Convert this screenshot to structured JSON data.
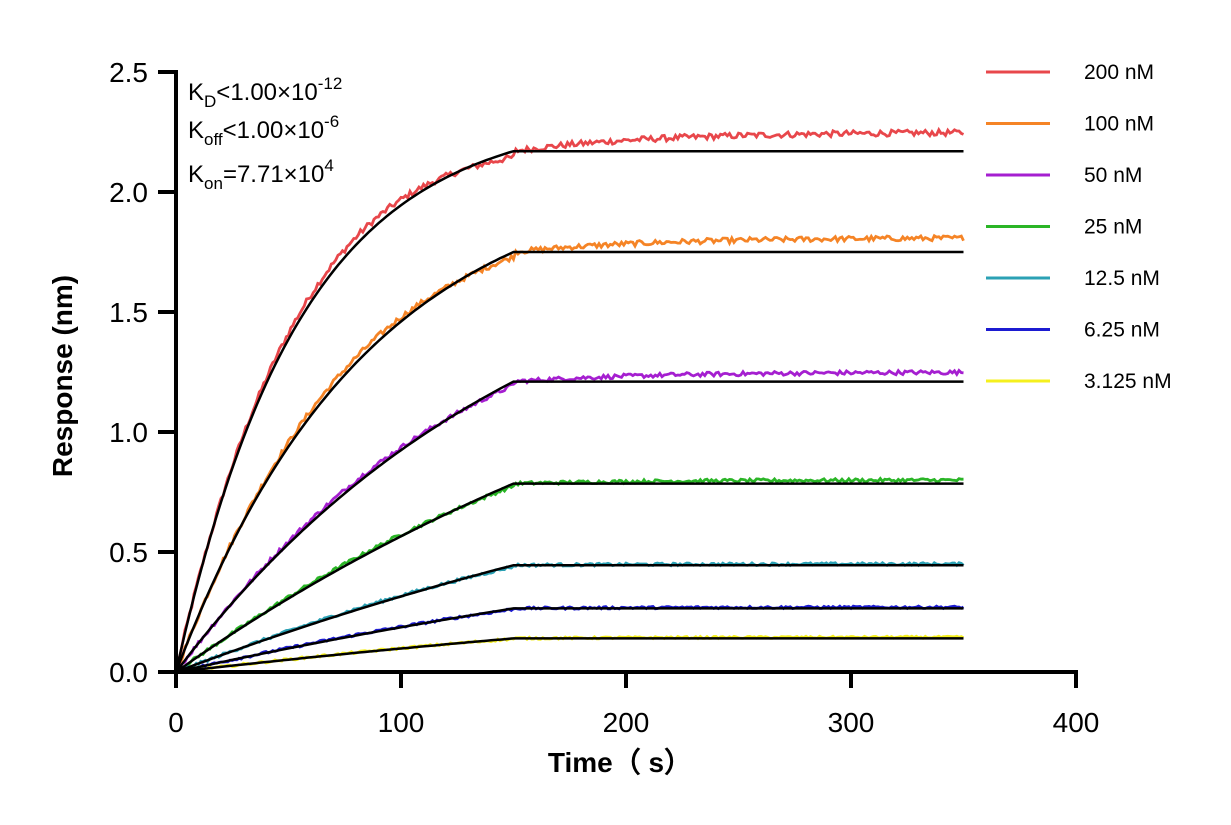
{
  "chart_data": {
    "type": "line",
    "xlabel": "Time（ s）",
    "ylabel": "Response (nm)",
    "xlim": [
      0,
      400
    ],
    "ylim": [
      0,
      2.5
    ],
    "xticks": [
      "0",
      "100",
      "200",
      "300",
      "400"
    ],
    "yticks": [
      "0.0",
      "0.5",
      "1.0",
      "1.5",
      "2.0",
      "2.5"
    ],
    "grid": false,
    "legend_position": "right",
    "phases": {
      "association_end": 150,
      "dissociation_end": 350
    },
    "kinetics": {
      "kd": {
        "main": "K",
        "sub": "D",
        "rel": "<",
        "mantissa": "1.00×10",
        "exp": "-12"
      },
      "koff": {
        "main": "K",
        "sub": "off",
        "rel": "<",
        "mantissa": "1.00×10",
        "exp": "-6"
      },
      "kon": {
        "main": "K",
        "sub": "on",
        "rel": "=",
        "mantissa": "7.71×10",
        "exp": "4"
      }
    },
    "series": [
      {
        "name": "200 nM",
        "color": "#e8474b",
        "plateau": 2.17,
        "tau": 55,
        "final": 2.25
      },
      {
        "name": "100 nM",
        "color": "#f58426",
        "plateau": 1.75,
        "tau": 85,
        "final": 1.81
      },
      {
        "name": "50 nM",
        "color": "#a51fd0",
        "plateau": 1.21,
        "tau": 160,
        "final": 1.25
      },
      {
        "name": "25 nM",
        "color": "#2ab526",
        "plateau": 0.785,
        "tau": 300,
        "final": 0.8
      },
      {
        "name": "12.5 nM",
        "color": "#2ba1b4",
        "plateau": 0.445,
        "tau": 400,
        "final": 0.45
      },
      {
        "name": "6.25 nM",
        "color": "#1c1bd1",
        "plateau": 0.265,
        "tau": 450,
        "final": 0.27
      },
      {
        "name": "3.125 nM",
        "color": "#f5f01e",
        "plateau": 0.14,
        "tau": 500,
        "final": 0.145
      }
    ],
    "fit_color": "#000000"
  }
}
